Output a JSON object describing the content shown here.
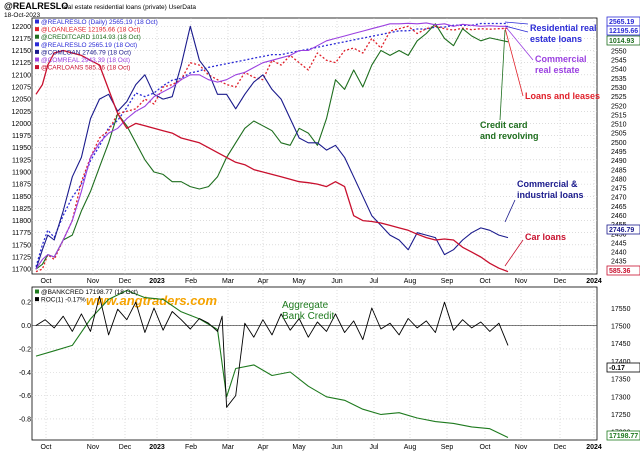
{
  "header": {
    "symbol": "@REALRESLO",
    "description": "real estate residential loans (private) UserData",
    "date": "18-Oct-2023"
  },
  "watermark": "www.angtraders.com",
  "colors": {
    "residential": "#2b2bd6",
    "commercial_re": "#9b40e0",
    "loans_leases": "#e0202a",
    "credit_card": "#1e6e1e",
    "commercial_industrial": "#1a1a8c",
    "car_loans": "#c8102e",
    "bank_credit": "#1e7a1e",
    "roc": "#000000",
    "watermark": "#f5a300"
  },
  "chart_data": [
    {
      "type": "line",
      "panel": "top",
      "x_labels": [
        "Oct",
        "Nov",
        "Dec",
        "2023",
        "Feb",
        "Mar",
        "Apr",
        "May",
        "Jun",
        "Jul",
        "Aug",
        "Sep",
        "Oct",
        "Nov",
        "Dec",
        "2024"
      ],
      "left_axis": {
        "ticks": [
          11700,
          11725,
          11750,
          11775,
          11800,
          11825,
          11850,
          11875,
          11900,
          11925,
          11950,
          11975,
          12000,
          12025,
          12050,
          12075,
          12100,
          12125,
          12150,
          12175,
          12200
        ],
        "range": [
          11690,
          12217
        ]
      },
      "right_axis": {
        "ticks": [
          2435,
          2440,
          2445,
          2450,
          2455,
          2460,
          2465,
          2470,
          2475,
          2480,
          2485,
          2490,
          2495,
          2500,
          2505,
          2510,
          2515,
          2520,
          2525,
          2530,
          2535,
          2540,
          2545,
          2550,
          2555,
          2560
        ],
        "range": [
          2428,
          2568
        ]
      },
      "legend": [
        "@REALRESLO (Daily) 2565.19 (18 Oct)",
        "@LOANLEASE 12195.66 (18 Oct)",
        "@CREDITCARD 1014.93 (18 Oct)",
        "@REALRESLO 2565.19 (18 Oct)",
        "@COMLOAN 2746.79 (18 Oct)",
        "@COMREAL 2943.39 (18 Oct)",
        "@CARLOANS 585.36 (18 Oct)"
      ],
      "right_badges": [
        "2565.19",
        "12195.66",
        "1014.93",
        "2746.79",
        "585.36"
      ],
      "annotations": [
        "Residential real estate loans",
        "Commercial real estate",
        "Loans and leases",
        "Credit card and revolving",
        "Commercial & industrial loans",
        "Car loans"
      ],
      "series": [
        {
          "name": "@REALRESLO",
          "axis": "right",
          "x": [
            0,
            0.7,
            1.3,
            2,
            3,
            4,
            5,
            6,
            7,
            8,
            9,
            10,
            11,
            12,
            13,
            14,
            15,
            16,
            17,
            18,
            19,
            20,
            21,
            22,
            23,
            24,
            25,
            26,
            27,
            28,
            29,
            30,
            31,
            32,
            33,
            34,
            35,
            36,
            37,
            38,
            39,
            40,
            41,
            42,
            43,
            44,
            45,
            46,
            47,
            48,
            49,
            50,
            51,
            52
          ],
          "y": [
            2432,
            2444,
            2452,
            2448,
            2460,
            2470,
            2477,
            2490,
            2498,
            2508,
            2512,
            2519,
            2527,
            2525,
            2527,
            2531,
            2534,
            2535,
            2538,
            2539,
            2541,
            2542,
            2543,
            2544,
            2545,
            2546,
            2547,
            2548,
            2548,
            2549,
            2550,
            2551,
            2552,
            2553,
            2554,
            2555,
            2556,
            2557,
            2558,
            2559,
            2560,
            2561,
            2561,
            2562,
            2562,
            2563,
            2563,
            2564,
            2564,
            2564,
            2565,
            2565,
            2565,
            2565
          ]
        },
        {
          "name": "@LOANLEASE",
          "axis": "left",
          "x": [
            0,
            0.7,
            1.3,
            2,
            3,
            4,
            5,
            6,
            7,
            8,
            9,
            10,
            11,
            12,
            13,
            14,
            15,
            16,
            17,
            18,
            19,
            20,
            21,
            22,
            23,
            24,
            25,
            26,
            27,
            28,
            29,
            30,
            31,
            32,
            33,
            34,
            35,
            36,
            37,
            38,
            39,
            40,
            41,
            42,
            43,
            44,
            45,
            46,
            47,
            48,
            49,
            50,
            51,
            52
          ],
          "y": [
            11695,
            11700,
            11730,
            11720,
            11760,
            11800,
            11880,
            11930,
            11970,
            11985,
            12020,
            12025,
            12030,
            12050,
            12040,
            12075,
            12080,
            12090,
            12125,
            12120,
            12100,
            12090,
            12080,
            12075,
            12105,
            12095,
            12090,
            12130,
            12120,
            12140,
            12125,
            12110,
            12145,
            12130,
            12125,
            12150,
            12155,
            12145,
            12175,
            12155,
            12190,
            12195,
            12200,
            12185,
            12195,
            12200,
            12195,
            12192,
            12196,
            12193,
            12195,
            12194,
            12195,
            12196
          ]
        },
        {
          "name": "@CREDITCARD",
          "axis": "left",
          "x": [
            0,
            0.7,
            1.3,
            2,
            3,
            4,
            5,
            6,
            7,
            8,
            9,
            10,
            11,
            12,
            13,
            14,
            15,
            16,
            17,
            18,
            19,
            20,
            21,
            22,
            23,
            24,
            25,
            26,
            27,
            28,
            29,
            30,
            31,
            32,
            33,
            34,
            35,
            36,
            37,
            38,
            39,
            40,
            41,
            42,
            43,
            44,
            45,
            46,
            47,
            48,
            49,
            50,
            51,
            52
          ],
          "y": [
            11700,
            11710,
            11730,
            11725,
            11760,
            11770,
            11820,
            11860,
            11910,
            11960,
            12020,
            11995,
            11960,
            11925,
            11900,
            11895,
            11880,
            11880,
            11870,
            11865,
            11870,
            11890,
            11930,
            11960,
            11990,
            12005,
            11995,
            11985,
            11960,
            11955,
            11990,
            11980,
            11955,
            12010,
            12090,
            12070,
            12110,
            12075,
            12120,
            12150,
            12140,
            12150,
            12140,
            12170,
            12185,
            12205,
            12175,
            12160,
            12195,
            12180,
            12170,
            12176,
            12172,
            12168
          ]
        },
        {
          "name": "@COMLOAN",
          "axis": "left",
          "x": [
            0,
            0.7,
            1.3,
            2,
            3,
            4,
            5,
            6,
            7,
            8,
            9,
            10,
            11,
            12,
            13,
            14,
            15,
            16,
            17,
            18,
            19,
            20,
            21,
            22,
            23,
            24,
            25,
            26,
            27,
            28,
            29,
            30,
            31,
            32,
            33,
            34,
            35,
            36,
            37,
            38,
            39,
            40,
            41,
            42,
            43,
            44,
            45,
            46,
            47,
            48,
            49,
            50,
            51,
            52
          ],
          "y": [
            11700,
            11740,
            11770,
            11760,
            11820,
            11890,
            11930,
            12010,
            12050,
            12060,
            12025,
            12045,
            12080,
            12100,
            12060,
            12050,
            12055,
            12120,
            12200,
            12130,
            12105,
            12060,
            12060,
            12030,
            12060,
            12085,
            12100,
            12070,
            12050,
            12010,
            11970,
            11960,
            11960,
            11945,
            11955,
            11930,
            11890,
            11850,
            11810,
            11790,
            11770,
            11760,
            11740,
            11775,
            11770,
            11765,
            11730,
            11740,
            11760,
            11775,
            11785,
            11780,
            11770,
            11765
          ]
        },
        {
          "name": "@COMREAL",
          "axis": "left",
          "x": [
            0,
            0.7,
            1.3,
            2,
            3,
            4,
            5,
            6,
            7,
            8,
            9,
            10,
            11,
            12,
            13,
            14,
            15,
            16,
            17,
            18,
            19,
            20,
            21,
            22,
            23,
            24,
            25,
            26,
            27,
            28,
            29,
            30,
            31,
            32,
            33,
            34,
            35,
            36,
            37,
            38,
            39,
            40,
            41,
            42,
            43,
            44,
            45,
            46,
            47,
            48,
            49,
            50,
            51,
            52
          ],
          "y": [
            11700,
            11720,
            11730,
            11725,
            11760,
            11800,
            11860,
            11930,
            11960,
            11980,
            11990,
            12010,
            12025,
            12035,
            12055,
            12065,
            12075,
            12090,
            12100,
            12100,
            12090,
            12085,
            12090,
            12100,
            12105,
            12115,
            12125,
            12130,
            12135,
            12140,
            12150,
            12150,
            12160,
            12170,
            12175,
            12180,
            12185,
            12190,
            12195,
            12200,
            12205,
            12205,
            12206,
            12205,
            12207,
            12203,
            12205,
            12200,
            12204,
            12202,
            12200,
            12201,
            12200,
            12200
          ]
        },
        {
          "name": "@CARLOANS",
          "axis": "left",
          "x": [
            0,
            0.7,
            1.3,
            2,
            3,
            4,
            5,
            6,
            7,
            8,
            9,
            10,
            11,
            12,
            13,
            14,
            15,
            16,
            17,
            18,
            19,
            20,
            21,
            22,
            23,
            24,
            25,
            26,
            27,
            28,
            29,
            30,
            31,
            32,
            33,
            34,
            35,
            36,
            37,
            38,
            39,
            40,
            41,
            42,
            43,
            44,
            45,
            46,
            47,
            48,
            49,
            50,
            51,
            52
          ],
          "y": [
            12060,
            12080,
            12120,
            12145,
            12150,
            12145,
            12140,
            12130,
            12120,
            12070,
            12020,
            11990,
            12000,
            11995,
            11990,
            11985,
            11980,
            11970,
            11965,
            11960,
            11950,
            11940,
            11930,
            11920,
            11915,
            11905,
            11900,
            11895,
            11890,
            11885,
            11880,
            11878,
            11875,
            11870,
            11880,
            11870,
            11810,
            11800,
            11798,
            11795,
            11790,
            11785,
            11780,
            11772,
            11765,
            11760,
            11762,
            11760,
            11745,
            11735,
            11725,
            11712,
            11702,
            11695
          ]
        }
      ]
    },
    {
      "type": "line",
      "panel": "bottom",
      "x_labels": [
        "Oct",
        "Nov",
        "Dec",
        "2023",
        "Feb",
        "Mar",
        "Apr",
        "May",
        "Jun",
        "Jul",
        "Aug",
        "Sep",
        "Oct",
        "Nov",
        "Dec",
        "2024"
      ],
      "left_axis": {
        "ticks": [
          0.2,
          0.0,
          -0.2,
          -0.4,
          -0.6,
          -0.8
        ],
        "range": [
          -0.98,
          0.33
        ]
      },
      "right_axis": {
        "ticks": [
          17550,
          17500,
          17450,
          17400,
          17350,
          17300,
          17250,
          17200
        ],
        "range": [
          17178,
          17610
        ]
      },
      "legend": [
        "@BANKCRED 17198.77 (18 Oct)",
        "ROC(1) -0.17%"
      ],
      "right_badges": [
        "-0.17",
        "17198.77"
      ],
      "annotations": [
        "Aggregate Bank Credit"
      ],
      "series": [
        {
          "name": "@BANKCRED",
          "axis": "right",
          "x": [
            0,
            2,
            4,
            6,
            8,
            10,
            12,
            14,
            16,
            18,
            20,
            21,
            22,
            24,
            26,
            28,
            30,
            32,
            34,
            36,
            38,
            40,
            42,
            44,
            46,
            48,
            50,
            52
          ],
          "y": [
            17415,
            17430,
            17445,
            17520,
            17575,
            17600,
            17580,
            17575,
            17540,
            17520,
            17490,
            17300,
            17380,
            17390,
            17360,
            17370,
            17330,
            17300,
            17290,
            17265,
            17250,
            17255,
            17240,
            17230,
            17225,
            17215,
            17210,
            17185
          ]
        },
        {
          "name": "ROC(1)",
          "axis": "left",
          "x": [
            0,
            1,
            2,
            3,
            4,
            5,
            6,
            7,
            8,
            9,
            10,
            11,
            12,
            13,
            14,
            15,
            16,
            17,
            18,
            19,
            20,
            20.5,
            21,
            22,
            23,
            24,
            25,
            26,
            27,
            28,
            29,
            30,
            31,
            32,
            33,
            34,
            35,
            36,
            37,
            38,
            39,
            40,
            41,
            42,
            43,
            44,
            45,
            46,
            47,
            48,
            49,
            50,
            51,
            52
          ],
          "y": [
            0.0,
            0.05,
            -0.02,
            0.08,
            -0.05,
            0.1,
            -0.05,
            0.25,
            -0.08,
            0.14,
            0.05,
            0.2,
            -0.06,
            0.15,
            -0.04,
            0.12,
            0.05,
            -0.03,
            0.06,
            0.02,
            -0.05,
            0.08,
            -0.7,
            -0.6,
            0.02,
            -0.1,
            0.05,
            -0.08,
            0.1,
            -0.04,
            0.06,
            -0.1,
            0.03,
            -0.05,
            0.1,
            -0.06,
            0.04,
            -0.12,
            0.15,
            -0.03,
            0.02,
            -0.08,
            0.06,
            -0.02,
            0.04,
            -0.06,
            0.2,
            -0.04,
            0.05,
            -0.02,
            0.03,
            -0.05,
            0.02,
            -0.17
          ]
        }
      ]
    }
  ]
}
